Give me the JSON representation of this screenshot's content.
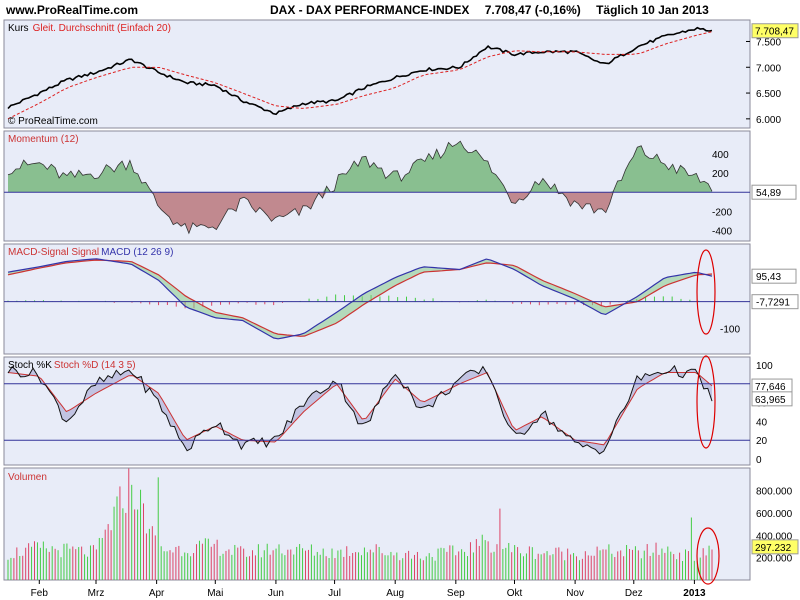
{
  "header": {
    "site": "www.ProRealTime.com",
    "instrument": "DAX - DAX PERFORMANCE-INDEX",
    "quote": "7.708,47 (-0,16%)",
    "period": "Täglich",
    "date": "10 Jan 2013"
  },
  "watermark": "© ProRealTime.com",
  "x_axis_labels": [
    "Feb",
    "Mrz",
    "Apr",
    "Mai",
    "Jun",
    "Jul",
    "Aug",
    "Sep",
    "Okt",
    "Nov",
    "Dez",
    "2013"
  ],
  "colors": {
    "panel_bg": "#e8ecf8",
    "price": "#000000",
    "sma": "#dd2222",
    "hline": "#333399",
    "mom_pos": "#3a9a3a",
    "mom_neg": "#a03838",
    "macd_line": "#3333aa",
    "signal_line": "#cc3333",
    "vol_up": "#44cc44",
    "vol_down": "#dd4466",
    "last_label_bg": "#ffff66",
    "highlight_circle": "#dd0000"
  },
  "panels": {
    "price": {
      "legend_a": "Kurs",
      "legend_b": "Gleit. Durchschnitt (Einfach 20)",
      "last_value": "7.708,47",
      "y_ticks": [
        "7.500",
        "7.000",
        "6.500",
        "6.000"
      ]
    },
    "momentum": {
      "legend": "Momentum (12)",
      "last_value": "54,89",
      "y_ticks": [
        "400",
        "200",
        "-200",
        "-400"
      ]
    },
    "macd": {
      "legend_a": "MACD-Signal Signal",
      "legend_b": "MACD (12 26 9)",
      "last_value_a": "95,43",
      "last_value_b": "-7,7291",
      "y_ticks": [
        "-100"
      ]
    },
    "stoch": {
      "legend_a": "Stoch %K",
      "legend_b": "Stoch %D (14 3 5)",
      "last_value_a": "77,646",
      "last_value_b": "63,965",
      "y_ticks": [
        "100",
        "80",
        "60",
        "40",
        "20",
        "0"
      ]
    },
    "volume": {
      "legend": "Volumen",
      "last_value": "297.232",
      "y_ticks": [
        "800.000",
        "600.000",
        "400.000",
        "200.000"
      ]
    }
  },
  "chart_data": [
    {
      "type": "line",
      "title": "Kurs",
      "x": [
        "2012-01-16",
        "2012-02-01",
        "2012-02-15",
        "2012-03-01",
        "2012-03-19",
        "2012-04-02",
        "2012-04-16",
        "2012-05-01",
        "2012-05-15",
        "2012-06-01",
        "2012-06-15",
        "2012-07-02",
        "2012-07-16",
        "2012-08-01",
        "2012-08-15",
        "2012-09-03",
        "2012-09-17",
        "2012-10-01",
        "2012-10-15",
        "2012-11-01",
        "2012-11-16",
        "2012-12-03",
        "2012-12-17",
        "2013-01-02",
        "2013-01-10"
      ],
      "series": [
        {
          "name": "Kurs",
          "values": [
            6220,
            6500,
            6750,
            6900,
            7150,
            6900,
            6700,
            6650,
            6350,
            6100,
            6300,
            6350,
            6600,
            6800,
            6950,
            7000,
            7400,
            7250,
            7300,
            7300,
            7050,
            7400,
            7600,
            7750,
            7708
          ]
        },
        {
          "name": "Gleit. Durchschnitt (Einfach 20)",
          "values": [
            6000,
            6300,
            6600,
            6800,
            7000,
            7000,
            6850,
            6700,
            6500,
            6250,
            6200,
            6280,
            6450,
            6600,
            6850,
            6950,
            7200,
            7320,
            7300,
            7300,
            7250,
            7250,
            7450,
            7620,
            7690
          ]
        }
      ],
      "ylim": [
        5900,
        7800
      ]
    },
    {
      "type": "area",
      "title": "Momentum (12)",
      "x": [
        "2012-01-16",
        "2012-02-01",
        "2012-02-15",
        "2012-03-01",
        "2012-03-19",
        "2012-04-02",
        "2012-04-16",
        "2012-05-01",
        "2012-05-15",
        "2012-06-01",
        "2012-06-15",
        "2012-07-02",
        "2012-07-16",
        "2012-08-01",
        "2012-08-15",
        "2012-09-03",
        "2012-09-17",
        "2012-10-01",
        "2012-10-15",
        "2012-11-01",
        "2012-11-16",
        "2012-12-03",
        "2012-12-17",
        "2013-01-02",
        "2013-01-10"
      ],
      "values": [
        250,
        300,
        150,
        200,
        320,
        -150,
        -400,
        -350,
        -100,
        -300,
        -200,
        100,
        350,
        150,
        300,
        550,
        300,
        -100,
        150,
        -120,
        -200,
        450,
        300,
        150,
        55
      ],
      "ylim": [
        -470,
        600
      ]
    },
    {
      "type": "line",
      "title": "MACD (12 26 9)",
      "x": [
        "2012-01-16",
        "2012-02-01",
        "2012-02-15",
        "2012-03-01",
        "2012-03-19",
        "2012-04-02",
        "2012-04-16",
        "2012-05-01",
        "2012-05-15",
        "2012-06-01",
        "2012-06-15",
        "2012-07-02",
        "2012-07-16",
        "2012-08-01",
        "2012-08-15",
        "2012-09-03",
        "2012-09-17",
        "2012-10-01",
        "2012-10-15",
        "2012-11-01",
        "2012-11-16",
        "2012-12-03",
        "2012-12-17",
        "2013-01-02",
        "2013-01-10"
      ],
      "series": [
        {
          "name": "MACD",
          "values": [
            110,
            130,
            150,
            160,
            140,
            80,
            -20,
            -60,
            -70,
            -140,
            -120,
            -40,
            30,
            90,
            130,
            120,
            160,
            120,
            60,
            10,
            -50,
            20,
            90,
            110,
            95
          ]
        },
        {
          "name": "Signal",
          "values": [
            100,
            125,
            145,
            155,
            150,
            100,
            20,
            -40,
            -60,
            -120,
            -130,
            -80,
            -10,
            60,
            110,
            120,
            145,
            135,
            80,
            30,
            -20,
            0,
            60,
            100,
            103
          ]
        }
      ],
      "ylim": [
        -180,
        200
      ]
    },
    {
      "type": "line",
      "title": "Stoch %K / %D (14 3 5)",
      "x": [
        "2012-01-16",
        "2012-02-01",
        "2012-02-15",
        "2012-03-01",
        "2012-03-19",
        "2012-04-02",
        "2012-04-16",
        "2012-05-01",
        "2012-05-15",
        "2012-06-01",
        "2012-06-15",
        "2012-07-02",
        "2012-07-16",
        "2012-08-01",
        "2012-08-15",
        "2012-09-03",
        "2012-09-17",
        "2012-10-01",
        "2012-10-15",
        "2012-11-01",
        "2012-11-16",
        "2012-12-03",
        "2012-12-17",
        "2013-01-02",
        "2013-01-10"
      ],
      "series": [
        {
          "name": "Stoch %K",
          "values": [
            95,
            90,
            40,
            80,
            95,
            60,
            10,
            40,
            15,
            20,
            60,
            85,
            30,
            95,
            50,
            85,
            95,
            20,
            50,
            15,
            10,
            85,
            95,
            90,
            64
          ]
        },
        {
          "name": "Stoch %D",
          "values": [
            92,
            88,
            50,
            70,
            90,
            70,
            20,
            35,
            20,
            18,
            50,
            80,
            40,
            85,
            60,
            80,
            92,
            30,
            45,
            20,
            15,
            75,
            92,
            92,
            78
          ]
        }
      ],
      "ylim": [
        0,
        100
      ]
    },
    {
      "type": "bar",
      "title": "Volumen",
      "x": [
        "2012-01-16",
        "2012-02-01",
        "2012-02-15",
        "2012-03-01",
        "2012-03-19",
        "2012-04-02",
        "2012-04-16",
        "2012-05-01",
        "2012-05-15",
        "2012-06-01",
        "2012-06-15",
        "2012-07-02",
        "2012-07-16",
        "2012-08-01",
        "2012-08-15",
        "2012-09-03",
        "2012-09-17",
        "2012-10-01",
        "2012-10-15",
        "2012-11-01",
        "2012-11-16",
        "2012-12-03",
        "2012-12-17",
        "2013-01-02",
        "2013-01-10"
      ],
      "values": [
        250000,
        300000,
        280000,
        260000,
        930000,
        280000,
        300000,
        320000,
        250000,
        300000,
        280000,
        260000,
        300000,
        250000,
        230000,
        270000,
        360000,
        280000,
        260000,
        250000,
        270000,
        260000,
        290000,
        200000,
        297232
      ],
      "ylim": [
        0,
        950000
      ]
    }
  ]
}
